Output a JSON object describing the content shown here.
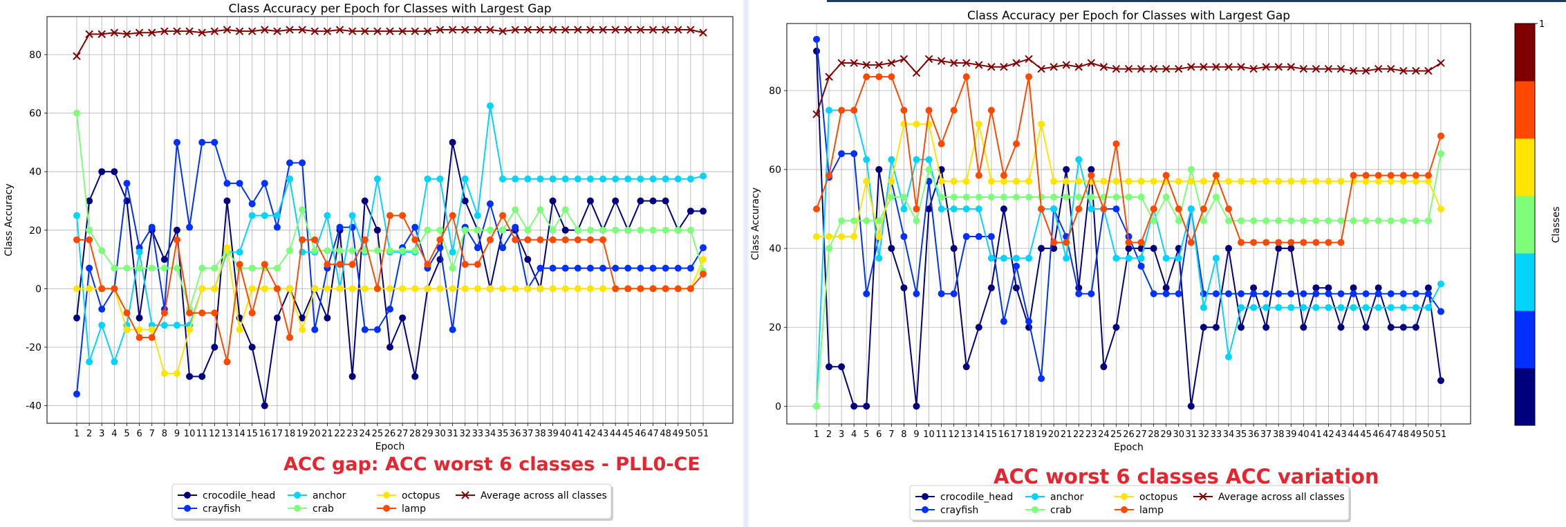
{
  "charts": [
    {
      "title": "Class Accuracy per Epoch for Classes with Largest Gap",
      "xlabel": "Epoch",
      "ylabel": "Class Accuracy",
      "caption": "ACC gap: ACC worst 6 classes - PLL0-CE"
    },
    {
      "title": "Class Accuracy per Epoch for Classes with Largest Gap",
      "xlabel": "Epoch",
      "ylabel": "Class Accuracy",
      "caption": "ACC worst 6 classes ACC variation"
    }
  ],
  "colorbar": {
    "label": "Classes",
    "top_tick": "1",
    "colors": [
      "#00007f",
      "#0030ff",
      "#00d4ff",
      "#7dff7a",
      "#ffe500",
      "#ff4800",
      "#7f0000"
    ]
  },
  "chart_data": [
    {
      "type": "line",
      "title": "Class Accuracy per Epoch for Classes with Largest Gap",
      "xlabel": "Epoch",
      "ylabel": "Class Accuracy",
      "x": [
        1,
        2,
        3,
        4,
        5,
        6,
        7,
        8,
        9,
        10,
        11,
        12,
        13,
        14,
        15,
        16,
        17,
        18,
        19,
        20,
        21,
        22,
        23,
        24,
        25,
        26,
        27,
        28,
        29,
        30,
        31,
        32,
        33,
        34,
        35,
        36,
        37,
        38,
        39,
        40,
        41,
        42,
        43,
        44,
        45,
        46,
        47,
        48,
        49,
        50,
        51
      ],
      "yticks": [
        -40,
        -20,
        0,
        20,
        40,
        60,
        80
      ],
      "ylim": [
        -46,
        93
      ],
      "grid": true,
      "legend": "bottom-center",
      "series": [
        {
          "name": "crocodile_head",
          "color": "#00007f",
          "marker": "o",
          "values": [
            -10,
            30,
            40,
            40,
            30,
            -10,
            20,
            10,
            20,
            -30,
            -30,
            -20,
            30,
            -10,
            -20,
            -40,
            -10,
            0,
            -10,
            0,
            -10,
            20,
            -30,
            30,
            20,
            -20,
            -10,
            -30,
            0,
            10,
            50,
            30,
            20,
            0,
            20,
            20,
            10,
            0,
            30,
            20,
            20,
            30,
            20,
            30,
            20,
            30,
            30,
            30,
            20,
            26.5,
            26.5
          ]
        },
        {
          "name": "crayfish",
          "color": "#0030ff",
          "marker": "o",
          "values": [
            -36,
            7,
            -7,
            0,
            36,
            14,
            21,
            -7,
            50,
            21,
            50,
            50,
            36,
            36,
            29,
            36,
            21,
            43,
            43,
            -14,
            7,
            21,
            21,
            -14,
            -14,
            -7,
            14,
            21,
            7,
            14,
            -14,
            21,
            14,
            29,
            14,
            21,
            0,
            7,
            7,
            7,
            7,
            7,
            7,
            7,
            7,
            7,
            7,
            7,
            7,
            7,
            14
          ]
        },
        {
          "name": "anchor",
          "color": "#00d4ff",
          "marker": "o",
          "values": [
            25,
            -25,
            -12.5,
            -25,
            -12.5,
            12.5,
            -12.5,
            -12.5,
            -12.5,
            -12.5,
            0,
            0,
            12.5,
            12.5,
            25,
            25,
            25,
            37.5,
            12.5,
            12.5,
            25,
            0,
            25,
            12.5,
            37.5,
            12.5,
            12.5,
            12.5,
            37.5,
            37.5,
            12.5,
            37.5,
            25,
            62.5,
            37.5,
            37.5,
            37.5,
            37.5,
            37.5,
            37.5,
            37.5,
            37.5,
            37.5,
            37.5,
            37.5,
            37.5,
            37.5,
            37.5,
            37.5,
            37.5,
            38.5
          ]
        },
        {
          "name": "crab",
          "color": "#7dff7a",
          "marker": "o",
          "values": [
            60,
            20,
            13,
            7,
            7,
            7,
            7,
            7,
            7,
            -7,
            7,
            7,
            13,
            7,
            7,
            7,
            7,
            13,
            27,
            13,
            13,
            13,
            13,
            13,
            13,
            13,
            13,
            13,
            20,
            20,
            7,
            20,
            20,
            20,
            20,
            27,
            20,
            27,
            20,
            27,
            20,
            20,
            20,
            20,
            20,
            20,
            20,
            20,
            20,
            20,
            6
          ]
        },
        {
          "name": "octopus",
          "color": "#ffe500",
          "marker": "o",
          "values": [
            0,
            0,
            0,
            0,
            -14,
            -14,
            -14,
            -29,
            -29,
            -14,
            0,
            0,
            14,
            -14,
            0,
            0,
            0,
            0,
            -14,
            0,
            0,
            0,
            0,
            0,
            0,
            0,
            0,
            0,
            0,
            0,
            0,
            0,
            0,
            0,
            0,
            0,
            0,
            0,
            0,
            0,
            0,
            0,
            0,
            0,
            0,
            0,
            0,
            0,
            0,
            0,
            10
          ]
        },
        {
          "name": "lamp",
          "color": "#ff4800",
          "marker": "o",
          "values": [
            16.7,
            16.7,
            0,
            0,
            -8.3,
            -16.7,
            -16.7,
            -8.3,
            16.7,
            -8.3,
            -8.3,
            -8.3,
            -25,
            8.3,
            -8.3,
            8.3,
            0,
            -16.7,
            16.7,
            16.7,
            8.3,
            8.3,
            8.3,
            16.7,
            0,
            25,
            25,
            16.7,
            8.3,
            16.7,
            25,
            8.3,
            8.3,
            16.7,
            25,
            16.7,
            16.7,
            16.7,
            16.7,
            16.7,
            16.7,
            16.7,
            16.7,
            0,
            0,
            0,
            0,
            0,
            0,
            0,
            5
          ]
        },
        {
          "name": "Average across all classes",
          "color": "#7f0000",
          "marker": "x",
          "values": [
            79.5,
            87,
            87,
            87.5,
            87,
            87.5,
            87.5,
            88,
            88,
            88,
            87.5,
            88,
            88.5,
            88,
            88,
            88.5,
            88,
            88.5,
            88.5,
            88,
            88,
            88.5,
            88,
            88,
            88,
            88,
            88,
            88,
            88,
            88.5,
            88.5,
            88.5,
            88.5,
            88.5,
            88,
            88.5,
            88.5,
            88.5,
            88.5,
            88.5,
            88.5,
            88.5,
            88.5,
            88.5,
            88.5,
            88.5,
            88.5,
            88.5,
            88.5,
            88.5,
            87.5
          ]
        }
      ]
    },
    {
      "type": "line",
      "title": "Class Accuracy per Epoch for Classes with Largest Gap",
      "xlabel": "Epoch",
      "ylabel": "Class Accuracy",
      "x": [
        1,
        2,
        3,
        4,
        5,
        6,
        7,
        8,
        9,
        10,
        11,
        12,
        13,
        14,
        15,
        16,
        17,
        18,
        19,
        20,
        21,
        22,
        23,
        24,
        25,
        26,
        27,
        28,
        29,
        30,
        31,
        32,
        33,
        34,
        35,
        36,
        37,
        38,
        39,
        40,
        41,
        42,
        43,
        44,
        45,
        46,
        47,
        48,
        49,
        50,
        51
      ],
      "yticks": [
        0,
        20,
        40,
        60,
        80
      ],
      "ylim": [
        -4.5,
        97
      ],
      "grid": true,
      "legend": "bottom-center",
      "series": [
        {
          "name": "crocodile_head",
          "color": "#00007f",
          "marker": "o",
          "values": [
            90,
            10,
            10,
            0,
            0,
            60,
            40,
            30,
            0,
            50,
            60,
            40,
            10,
            20,
            30,
            50,
            30,
            20,
            40,
            40,
            60,
            30,
            60,
            10,
            20,
            40,
            40,
            40,
            30,
            40,
            0,
            20,
            20,
            40,
            20,
            30,
            20,
            40,
            40,
            20,
            30,
            30,
            20,
            30,
            20,
            30,
            20,
            20,
            20,
            30,
            6.5
          ]
        },
        {
          "name": "crayfish",
          "color": "#0030ff",
          "marker": "o",
          "values": [
            93,
            58,
            64,
            64,
            28.5,
            43,
            57,
            43,
            28.5,
            57,
            28.5,
            28.5,
            43,
            43,
            43,
            21.5,
            35.5,
            21.5,
            7,
            50,
            43,
            28.5,
            28.5,
            50,
            50,
            43,
            35.5,
            28.5,
            28.5,
            28.5,
            50,
            28.5,
            28.5,
            28.5,
            28.5,
            28.5,
            28.5,
            28.5,
            28.5,
            28.5,
            28.5,
            28.5,
            28.5,
            28.5,
            28.5,
            28.5,
            28.5,
            28.5,
            28.5,
            28.5,
            24
          ]
        },
        {
          "name": "anchor",
          "color": "#00d4ff",
          "marker": "o",
          "values": [
            0,
            75,
            75,
            75,
            62.5,
            37.5,
            62.5,
            50,
            62.5,
            62.5,
            50,
            50,
            50,
            50,
            37.5,
            37.5,
            37.5,
            37.5,
            50,
            50,
            37.5,
            62.5,
            50,
            50,
            37.5,
            37.5,
            37.5,
            50,
            37.5,
            37.5,
            50,
            25,
            37.5,
            12.5,
            25,
            25,
            25,
            25,
            25,
            25,
            25,
            25,
            25,
            25,
            25,
            25,
            25,
            25,
            25,
            25,
            31
          ]
        },
        {
          "name": "crab",
          "color": "#7dff7a",
          "marker": "o",
          "values": [
            0,
            40,
            47,
            47,
            47,
            47,
            53,
            53,
            47,
            60,
            53,
            53,
            53,
            53,
            53,
            53,
            53,
            53,
            53,
            53,
            53,
            53,
            53,
            53,
            53,
            53,
            53,
            47,
            53,
            47,
            60,
            47,
            53,
            47,
            47,
            47,
            47,
            47,
            47,
            47,
            47,
            47,
            47,
            47,
            47,
            47,
            47,
            47,
            47,
            47,
            64
          ]
        },
        {
          "name": "octopus",
          "color": "#ffe500",
          "marker": "o",
          "values": [
            43,
            43,
            43,
            43,
            57,
            43,
            57,
            71.5,
            71.5,
            71.5,
            57,
            57,
            57,
            71.5,
            57,
            57,
            57,
            57,
            71.5,
            57,
            57,
            57,
            57,
            57,
            57,
            57,
            57,
            57,
            57,
            57,
            57,
            57,
            57,
            57,
            57,
            57,
            57,
            57,
            57,
            57,
            57,
            57,
            57,
            57,
            57,
            57,
            57,
            57,
            57,
            57,
            50
          ]
        },
        {
          "name": "lamp",
          "color": "#ff4800",
          "marker": "o",
          "values": [
            50,
            58.5,
            75,
            75,
            83.5,
            83.5,
            83.5,
            75,
            50,
            75,
            66.5,
            75,
            83.5,
            58.5,
            75,
            58.5,
            66.5,
            83.5,
            50,
            41.5,
            41.5,
            50,
            58.5,
            50,
            66.5,
            41.5,
            41.5,
            50,
            58.5,
            50,
            41.5,
            50,
            58.5,
            50,
            41.5,
            41.5,
            41.5,
            41.5,
            41.5,
            41.5,
            41.5,
            41.5,
            41.5,
            58.5,
            58.5,
            58.5,
            58.5,
            58.5,
            58.5,
            58.5,
            68.5
          ]
        },
        {
          "name": "Average across all classes",
          "color": "#7f0000",
          "marker": "x",
          "values": [
            74,
            83.5,
            87,
            87,
            86.5,
            86.5,
            87,
            88,
            84.5,
            88,
            87.5,
            87,
            87,
            86.5,
            86,
            86,
            87,
            88,
            85.5,
            86,
            86.5,
            86,
            87,
            86,
            85.5,
            85.5,
            85.5,
            85.5,
            85.5,
            85.5,
            86,
            86,
            86,
            86,
            86,
            85.5,
            86,
            86,
            86,
            85.5,
            85.5,
            85.5,
            85.5,
            85,
            85,
            85.5,
            85.5,
            85,
            85,
            85,
            87
          ]
        }
      ]
    }
  ]
}
